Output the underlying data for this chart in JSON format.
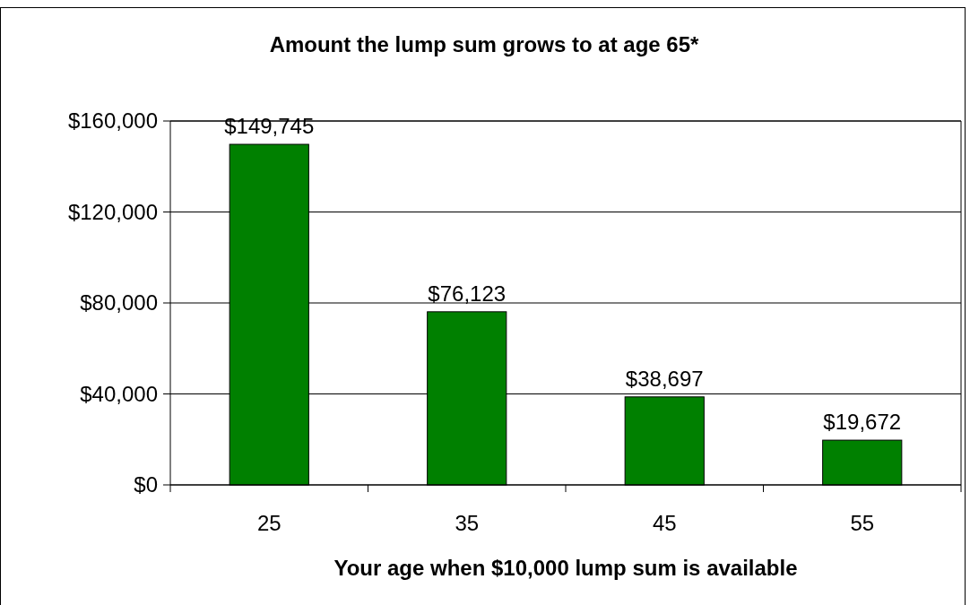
{
  "chart_data": {
    "type": "bar",
    "title": "Amount the lump sum grows to at age 65*",
    "xlabel": "Your age when $10,000 lump sum is available",
    "categories": [
      "25",
      "35",
      "45",
      "55"
    ],
    "values": [
      149745,
      76123,
      38697,
      19672
    ],
    "value_labels": [
      "$149,745",
      "$76,123",
      "$38,697",
      "$19,672"
    ],
    "color": "#008000",
    "ylim": [
      0,
      160000
    ],
    "yticks": [
      {
        "value": 0,
        "label": "$0"
      },
      {
        "value": 40000,
        "label": "$40,000"
      },
      {
        "value": 80000,
        "label": "$80,000"
      },
      {
        "value": 120000,
        "label": "$120,000"
      },
      {
        "value": 160000,
        "label": "$160,000"
      }
    ],
    "grid": "y"
  }
}
